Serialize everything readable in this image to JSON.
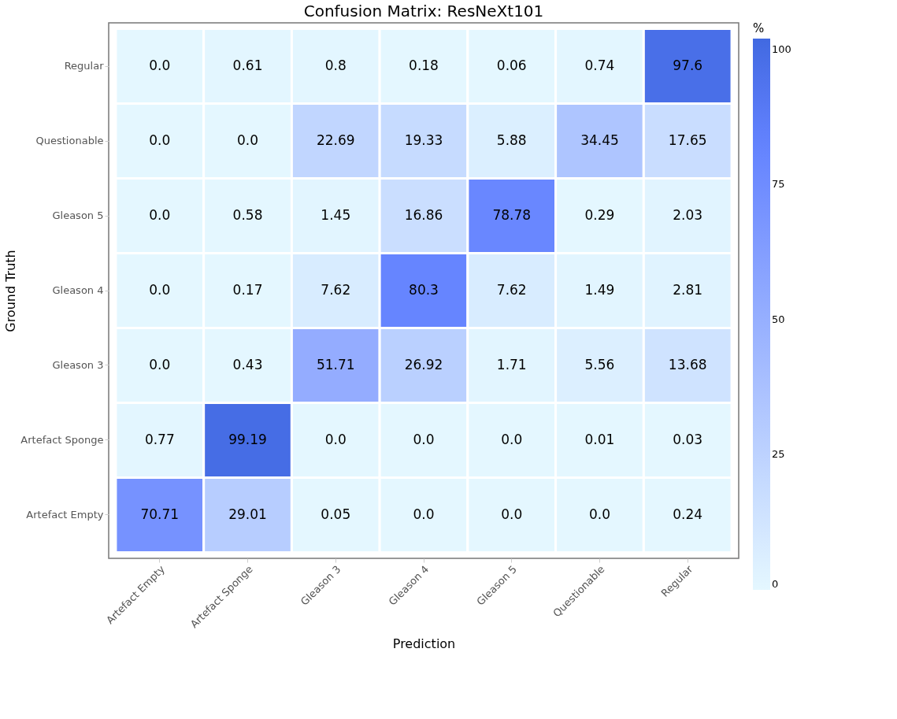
{
  "chart_data": {
    "type": "heatmap",
    "title": "Confusion Matrix: ResNeXt101",
    "xlabel": "Prediction",
    "ylabel": "Ground Truth",
    "clabel": "%",
    "categories": [
      "Artefact Empty",
      "Artefact Sponge",
      "Gleason 3",
      "Gleason 4",
      "Gleason 5",
      "Questionable",
      "Regular"
    ],
    "y_categories": [
      "Regular",
      "Questionable",
      "Gleason 5",
      "Gleason 4",
      "Gleason 3",
      "Artefact Sponge",
      "Artefact Empty"
    ],
    "cells": [
      [
        0,
        0.61,
        0.8,
        0.18,
        0.06,
        0.74,
        97.6
      ],
      [
        0,
        0,
        22.69,
        19.33,
        5.88,
        34.45,
        17.65
      ],
      [
        0,
        0.58,
        1.45,
        16.86,
        78.78,
        0.29,
        2.03
      ],
      [
        0,
        0.17,
        7.62,
        80.3,
        7.62,
        1.49,
        2.81
      ],
      [
        0,
        0.43,
        51.71,
        26.92,
        1.71,
        5.56,
        13.68
      ],
      [
        0.77,
        99.19,
        0,
        0,
        0,
        0.01,
        0.03
      ],
      [
        70.71,
        29.01,
        0.05,
        0,
        0,
        0,
        0.24
      ]
    ],
    "cell_labels": [
      [
        "0.0",
        "0.61",
        "0.8",
        "0.18",
        "0.06",
        "0.74",
        "97.6"
      ],
      [
        "0.0",
        "0.0",
        "22.69",
        "19.33",
        "5.88",
        "34.45",
        "17.65"
      ],
      [
        "0.0",
        "0.58",
        "1.45",
        "16.86",
        "78.78",
        "0.29",
        "2.03"
      ],
      [
        "0.0",
        "0.17",
        "7.62",
        "80.3",
        "7.62",
        "1.49",
        "2.81"
      ],
      [
        "0.0",
        "0.43",
        "51.71",
        "26.92",
        "1.71",
        "5.56",
        "13.68"
      ],
      [
        "0.77",
        "99.19",
        "0.0",
        "0.0",
        "0.0",
        "0.01",
        "0.03"
      ],
      [
        "70.71",
        "29.01",
        "0.05",
        "0.0",
        "0.0",
        "0.0",
        "0.24"
      ]
    ],
    "clim": [
      0,
      102
    ],
    "cticks": [
      0,
      25,
      50,
      75,
      100
    ],
    "colors": [
      "#ffffff",
      "#4169e1"
    ]
  }
}
